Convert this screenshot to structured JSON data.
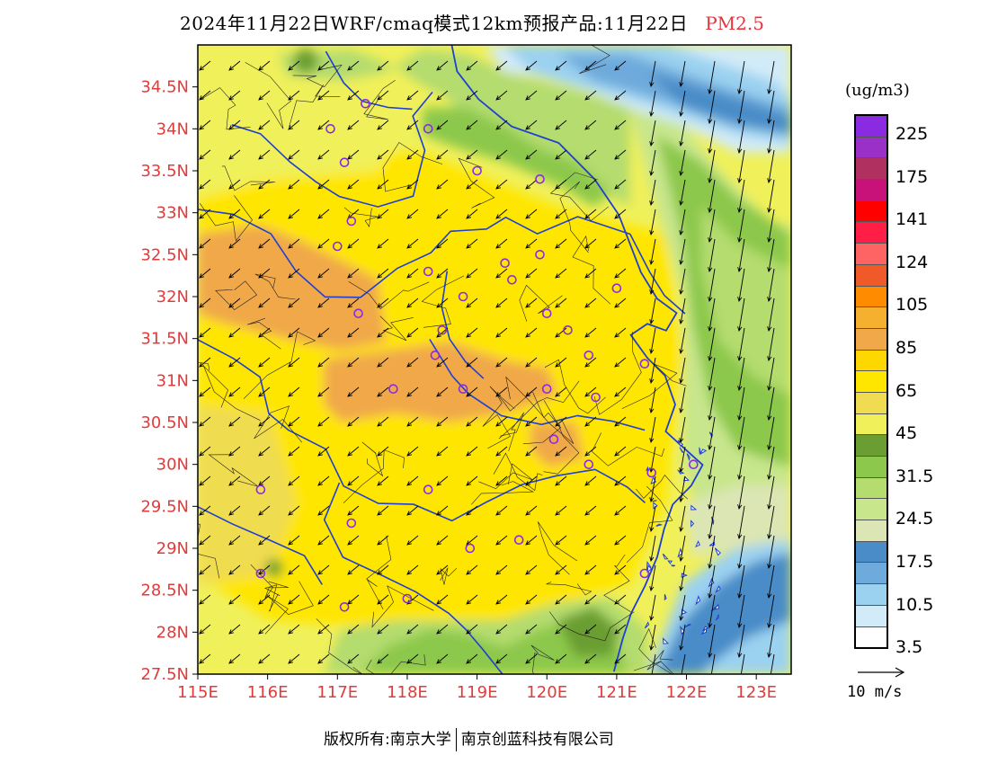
{
  "title": {
    "main": "2024年11月22日WRF/cmaq模式12km预报产品:11月22日",
    "pollutant": "PM2.5"
  },
  "axes": {
    "lat_labels": [
      "34.5N",
      "34N",
      "33.5N",
      "33N",
      "32.5N",
      "32N",
      "31.5N",
      "31N",
      "30.5N",
      "30N",
      "29.5N",
      "29N",
      "28.5N",
      "28N",
      "27.5N"
    ],
    "lat_values": [
      34.5,
      34,
      33.5,
      33,
      32.5,
      32,
      31.5,
      31,
      30.5,
      30,
      29.5,
      29,
      28.5,
      28,
      27.5
    ],
    "lon_labels": [
      "115E",
      "116E",
      "117E",
      "118E",
      "119E",
      "120E",
      "121E",
      "122E",
      "123E"
    ],
    "lon_values": [
      115,
      116,
      117,
      118,
      119,
      120,
      121,
      122,
      123
    ],
    "lat_range": [
      27.5,
      35.0
    ],
    "lon_range": [
      115.0,
      123.5
    ]
  },
  "legend": {
    "unit": "(ug/m3)",
    "labels": [
      "225",
      "175",
      "141",
      "124",
      "105",
      "85",
      "65",
      "45",
      "31.5",
      "24.5",
      "17.5",
      "10.5",
      "3.5"
    ],
    "colors": [
      "#8a2be2",
      "#9b30c8",
      "#b03060",
      "#c8127a",
      "#ff0000",
      "#ff1e46",
      "#ff6464",
      "#f05a28",
      "#ff8c00",
      "#f5b030",
      "#f0a848",
      "#ffd700",
      "#ffe600",
      "#f0dc50",
      "#f0f05a",
      "#6b9e32",
      "#8cc84b",
      "#b4dc6e",
      "#c8e68c",
      "#dce6b4",
      "#4a8cc8",
      "#6eaadc",
      "#9bd2f0",
      "#d2ebf8",
      "#ffffff"
    ]
  },
  "reference_vector": {
    "label": "10 m/s"
  },
  "footer": {
    "copyright": "版权所有:南京大学",
    "company": "南京创蓝科技有限公司"
  },
  "map_data": {
    "field": "PM2.5",
    "wind_direction": "northeasterly (arrows pointing south-west)",
    "stations": [
      [
        116.9,
        34.0
      ],
      [
        117.4,
        34.3
      ],
      [
        118.3,
        34.0
      ],
      [
        117.1,
        33.6
      ],
      [
        119.0,
        33.5
      ],
      [
        119.9,
        33.4
      ],
      [
        117.2,
        32.9
      ],
      [
        117.0,
        32.6
      ],
      [
        118.3,
        32.3
      ],
      [
        118.8,
        32.0
      ],
      [
        119.4,
        32.4
      ],
      [
        119.5,
        32.2
      ],
      [
        119.9,
        32.5
      ],
      [
        121.0,
        32.1
      ],
      [
        117.3,
        31.8
      ],
      [
        120.0,
        31.8
      ],
      [
        120.3,
        31.6
      ],
      [
        118.4,
        31.3
      ],
      [
        118.5,
        31.6
      ],
      [
        120.6,
        31.3
      ],
      [
        121.4,
        31.2
      ],
      [
        117.8,
        30.9
      ],
      [
        118.8,
        30.9
      ],
      [
        120.0,
        30.9
      ],
      [
        120.7,
        30.8
      ],
      [
        120.1,
        30.3
      ],
      [
        120.6,
        30.0
      ],
      [
        121.5,
        29.9
      ],
      [
        122.1,
        30.0
      ],
      [
        115.9,
        29.7
      ],
      [
        118.3,
        29.7
      ],
      [
        117.2,
        29.3
      ],
      [
        118.9,
        29.0
      ],
      [
        119.6,
        29.1
      ],
      [
        115.9,
        28.7
      ],
      [
        121.4,
        28.7
      ],
      [
        117.1,
        28.3
      ],
      [
        118.0,
        28.4
      ]
    ]
  }
}
